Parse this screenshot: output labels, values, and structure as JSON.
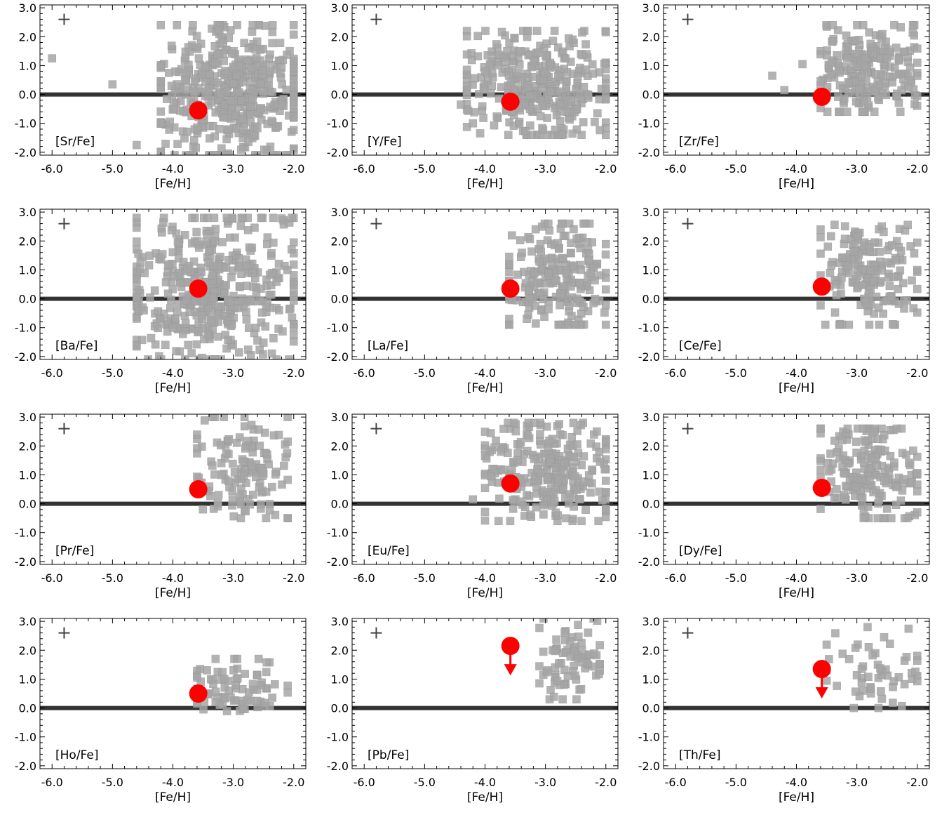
{
  "figure": {
    "xlabel": "[Fe/H]",
    "xlim": [
      -6.2,
      -1.8
    ],
    "ylim": [
      -2.1,
      3.1
    ],
    "xticks": [
      -6.0,
      -5.0,
      -4.0,
      -3.0,
      -2.0
    ],
    "xtick_labels": [
      "-6.0",
      "-5.0",
      "-4.0",
      "-3.0",
      "-2.0"
    ],
    "yticks": [
      -2.0,
      -1.0,
      0.0,
      1.0,
      2.0,
      3.0
    ],
    "ytick_labels": [
      "-2.0",
      "-1.0",
      "0.0",
      "1.0",
      "2.0",
      "3.0"
    ],
    "colors": {
      "comparison_points": "#a6a6a6",
      "comparison_edge": "#999999",
      "target_star": "#ff0000",
      "solar_line": "#333333",
      "error_cross": "#444444"
    },
    "marker_shapes": {
      "comparison": "square",
      "target": "circle",
      "upper_limit": "down-arrow"
    },
    "solar_reference_line_y": 0.0,
    "representative_error_bar": {
      "x": -5.8,
      "y": 2.6
    }
  },
  "chart_data": [
    {
      "type": "scatter",
      "label": "[Sr/Fe]",
      "target": {
        "x": -3.58,
        "y": -0.55
      },
      "comparison_density": 2.0,
      "comparison_region": {
        "x": [
          -4.2,
          -2.0
        ],
        "y": [
          -2.1,
          2.4
        ]
      },
      "comparison_outliers": [
        [
          -6.0,
          1.25
        ],
        [
          -5.0,
          0.35
        ],
        [
          -4.6,
          -1.75
        ],
        [
          -4.2,
          -1.0
        ],
        [
          -3.8,
          0.5
        ]
      ]
    },
    {
      "type": "scatter",
      "label": "[Y/Fe]",
      "target": {
        "x": -3.58,
        "y": -0.25
      },
      "comparison_density": 1.5,
      "comparison_region": {
        "x": [
          -4.3,
          -2.0
        ],
        "y": [
          -1.4,
          2.2
        ]
      },
      "comparison_outliers": [
        [
          -4.4,
          -0.35
        ],
        [
          -4.2,
          -1.0
        ],
        [
          -4.0,
          0.8
        ]
      ]
    },
    {
      "type": "scatter",
      "label": "[Zr/Fe]",
      "target": {
        "x": -3.58,
        "y": -0.08
      },
      "comparison_density": 1.0,
      "comparison_region": {
        "x": [
          -3.6,
          -2.0
        ],
        "y": [
          -0.6,
          2.4
        ]
      },
      "comparison_outliers": [
        [
          -4.4,
          0.65
        ],
        [
          -4.2,
          0.15
        ],
        [
          -3.9,
          1.05
        ]
      ]
    },
    {
      "type": "scatter",
      "label": "[Ba/Fe]",
      "target": {
        "x": -3.58,
        "y": 0.35
      },
      "comparison_density": 2.0,
      "comparison_region": {
        "x": [
          -4.6,
          -2.0
        ],
        "y": [
          -2.1,
          2.8
        ]
      },
      "comparison_outliers": [
        [
          -4.6,
          -1.6
        ],
        [
          -4.3,
          -0.95
        ],
        [
          -4.0,
          -1.0
        ]
      ]
    },
    {
      "type": "scatter",
      "label": "[La/Fe]",
      "target": {
        "x": -3.58,
        "y": 0.35
      },
      "comparison_density": 1.0,
      "comparison_region": {
        "x": [
          -3.6,
          -2.0
        ],
        "y": [
          -0.9,
          2.6
        ]
      },
      "comparison_outliers": []
    },
    {
      "type": "scatter",
      "label": "[Ce/Fe]",
      "target": {
        "x": -3.58,
        "y": 0.42
      },
      "comparison_density": 0.8,
      "comparison_region": {
        "x": [
          -3.6,
          -2.0
        ],
        "y": [
          -0.9,
          2.7
        ]
      },
      "comparison_outliers": []
    },
    {
      "type": "scatter",
      "label": "[Pr/Fe]",
      "target": {
        "x": -3.58,
        "y": 0.5
      },
      "comparison_density": 0.6,
      "comparison_region": {
        "x": [
          -3.6,
          -2.1
        ],
        "y": [
          -0.5,
          3.0
        ]
      },
      "comparison_outliers": []
    },
    {
      "type": "scatter",
      "label": "[Eu/Fe]",
      "target": {
        "x": -3.58,
        "y": 0.7
      },
      "comparison_density": 1.2,
      "comparison_region": {
        "x": [
          -4.0,
          -2.0
        ],
        "y": [
          -0.6,
          2.8
        ]
      },
      "comparison_outliers": [
        [
          -4.2,
          0.15
        ],
        [
          -3.9,
          0.95
        ]
      ]
    },
    {
      "type": "scatter",
      "label": "[Dy/Fe]",
      "target": {
        "x": -3.58,
        "y": 0.55
      },
      "comparison_density": 0.8,
      "comparison_region": {
        "x": [
          -3.6,
          -2.0
        ],
        "y": [
          -0.5,
          2.6
        ]
      },
      "comparison_outliers": []
    },
    {
      "type": "scatter",
      "label": "[Ho/Fe]",
      "target": {
        "x": -3.58,
        "y": 0.5
      },
      "comparison_density": 0.35,
      "comparison_region": {
        "x": [
          -3.6,
          -2.1
        ],
        "y": [
          -0.3,
          1.7
        ]
      },
      "comparison_outliers": []
    },
    {
      "type": "scatter",
      "label": "[Pb/Fe]",
      "target": {
        "x": -3.58,
        "y": 2.15,
        "upper_limit": true
      },
      "comparison_density": 0.35,
      "comparison_region": {
        "x": [
          -3.1,
          -2.1
        ],
        "y": [
          0.3,
          3.1
        ]
      },
      "comparison_outliers": []
    },
    {
      "type": "scatter",
      "label": "[Th/Fe]",
      "target": {
        "x": -3.58,
        "y": 1.35,
        "upper_limit": true
      },
      "comparison_density": 0.25,
      "comparison_region": {
        "x": [
          -3.5,
          -2.0
        ],
        "y": [
          0.0,
          2.8
        ]
      },
      "comparison_outliers": []
    }
  ]
}
